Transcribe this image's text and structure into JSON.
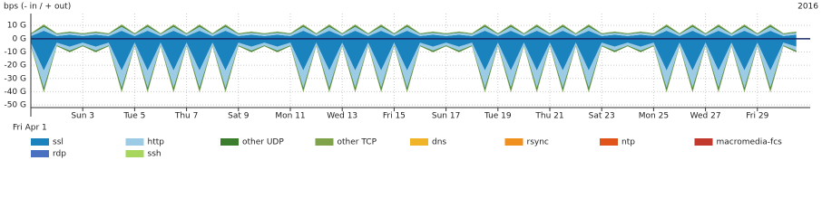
{
  "chart_data": {
    "type": "stacked-area",
    "title": "bps (- in / + out)",
    "year": "2016",
    "categories": [
      "Fri Apr 1",
      null,
      null,
      null,
      "Sun 3",
      null,
      null,
      null,
      "Tue 5",
      null,
      null,
      null,
      "Thu 7",
      null,
      null,
      null,
      "Sat 9",
      null,
      null,
      null,
      "Mon 11",
      null,
      null,
      null,
      "Wed 13",
      null,
      null,
      null,
      "Fri 15",
      null,
      null,
      null,
      "Sun 17",
      null,
      null,
      null,
      "Tue 19",
      null,
      null,
      null,
      "Thu 21",
      null,
      null,
      null,
      "Sat 23",
      null,
      null,
      null,
      "Mon 25",
      null,
      null,
      null,
      "Wed 27",
      null,
      null,
      null,
      "Fri 29",
      null,
      null,
      null
    ],
    "ylim": [
      -52,
      19
    ],
    "yticks": [
      {
        "value": 10,
        "label": "10 G"
      },
      {
        "value": 0,
        "label": "0 G"
      },
      {
        "value": -10,
        "label": "-10 G"
      },
      {
        "value": -20,
        "label": "-20 G"
      },
      {
        "value": -30,
        "label": "-30 G"
      },
      {
        "value": -40,
        "label": "-40 G"
      },
      {
        "value": -50,
        "label": "-50 G"
      }
    ],
    "grid": true,
    "series": [
      {
        "name": "ssl",
        "color": "#1a82bd",
        "out": [
          2,
          6,
          2,
          3,
          2,
          3,
          2,
          6,
          2,
          6,
          2,
          6,
          2,
          6,
          2,
          6,
          2,
          3,
          2,
          3,
          2,
          6,
          2,
          6,
          2,
          6,
          2,
          6,
          2,
          6,
          2,
          3,
          2,
          3,
          2,
          6,
          2,
          6,
          2,
          6,
          2,
          6,
          2,
          6,
          2,
          3,
          2,
          3,
          2,
          6,
          2,
          6,
          2,
          6,
          2,
          6,
          2,
          6,
          2,
          3
        ],
        "in": [
          -3,
          -24,
          -3,
          -6,
          -3,
          -6,
          -3,
          -24,
          -3,
          -24,
          -3,
          -24,
          -3,
          -24,
          -3,
          -24,
          -3,
          -6,
          -3,
          -6,
          -3,
          -24,
          -3,
          -24,
          -3,
          -24,
          -3,
          -24,
          -3,
          -24,
          -3,
          -6,
          -3,
          -6,
          -3,
          -24,
          -3,
          -24,
          -3,
          -24,
          -3,
          -24,
          -3,
          -24,
          -3,
          -6,
          -3,
          -6,
          -3,
          -24,
          -3,
          -24,
          -3,
          -24,
          -3,
          -24,
          -3,
          -24,
          -3,
          -6
        ]
      },
      {
        "name": "http",
        "color": "#9ccbe6",
        "out": [
          1.5,
          3,
          1.5,
          1.5,
          1.5,
          1.5,
          1.5,
          3,
          1.5,
          3,
          1.5,
          3,
          1.5,
          3,
          1.5,
          3,
          1.5,
          1.5,
          1.5,
          1.5,
          1.5,
          3,
          1.5,
          3,
          1.5,
          3,
          1.5,
          3,
          1.5,
          3,
          1.5,
          1.5,
          1.5,
          1.5,
          1.5,
          3,
          1.5,
          3,
          1.5,
          3,
          1.5,
          3,
          1.5,
          3,
          1.5,
          1.5,
          1.5,
          1.5,
          1.5,
          3,
          1.5,
          3,
          1.5,
          3,
          1.5,
          3,
          1.5,
          3,
          1.5,
          1.5
        ],
        "in": [
          -2,
          -13,
          -2,
          -3,
          -2,
          -3,
          -2,
          -13,
          -2,
          -13,
          -2,
          -13,
          -2,
          -13,
          -2,
          -13,
          -2,
          -3,
          -2,
          -3,
          -2,
          -13,
          -2,
          -13,
          -2,
          -13,
          -2,
          -13,
          -2,
          -13,
          -2,
          -3,
          -2,
          -3,
          -2,
          -13,
          -2,
          -13,
          -2,
          -13,
          -2,
          -13,
          -2,
          -13,
          -2,
          -3,
          -2,
          -3,
          -2,
          -13,
          -2,
          -13,
          -2,
          -13,
          -2,
          -13,
          -2,
          -13,
          -2,
          -3
        ]
      },
      {
        "name": "other UDP",
        "color": "#3b7d2c",
        "out": [
          0.4,
          1,
          0.4,
          0.5,
          0.4,
          0.5,
          0.4,
          1,
          0.4,
          1,
          0.4,
          1,
          0.4,
          1,
          0.4,
          1,
          0.4,
          0.5,
          0.4,
          0.5,
          0.4,
          1,
          0.4,
          1,
          0.4,
          1,
          0.4,
          1,
          0.4,
          1,
          0.4,
          0.5,
          0.4,
          0.5,
          0.4,
          1,
          0.4,
          1,
          0.4,
          1,
          0.4,
          1,
          0.4,
          1,
          0.4,
          0.5,
          0.4,
          0.5,
          0.4,
          1,
          0.4,
          1,
          0.4,
          1,
          0.4,
          1,
          0.4,
          1,
          0.4,
          0.5
        ],
        "in": [
          -0.5,
          -2,
          -0.5,
          -0.8,
          -0.5,
          -0.8,
          -0.5,
          -2,
          -0.5,
          -2,
          -0.5,
          -2,
          -0.5,
          -2,
          -0.5,
          -2,
          -0.5,
          -0.8,
          -0.5,
          -0.8,
          -0.5,
          -2,
          -0.5,
          -2,
          -0.5,
          -2,
          -0.5,
          -2,
          -0.5,
          -2,
          -0.5,
          -0.8,
          -0.5,
          -0.8,
          -0.5,
          -2,
          -0.5,
          -2,
          -0.5,
          -2,
          -0.5,
          -2,
          -0.5,
          -2,
          -0.5,
          -0.8,
          -0.5,
          -0.8,
          -0.5,
          -2,
          -0.5,
          -2,
          -0.5,
          -2,
          -0.5,
          -2,
          -0.5,
          -2,
          -0.5,
          -0.8
        ]
      },
      {
        "name": "other TCP",
        "color": "#7fa24b",
        "out": [
          0.3,
          0.8,
          0.3,
          0.4,
          0.3,
          0.4,
          0.3,
          0.8,
          0.3,
          0.8,
          0.3,
          0.8,
          0.3,
          0.8,
          0.3,
          0.8,
          0.3,
          0.4,
          0.3,
          0.4,
          0.3,
          0.8,
          0.3,
          0.8,
          0.3,
          0.8,
          0.3,
          0.8,
          0.3,
          0.8,
          0.3,
          0.4,
          0.3,
          0.4,
          0.3,
          0.8,
          0.3,
          0.8,
          0.3,
          0.8,
          0.3,
          0.8,
          0.3,
          0.8,
          0.3,
          0.4,
          0.3,
          0.4,
          0.3,
          0.8,
          0.3,
          0.8,
          0.3,
          0.8,
          0.3,
          0.8,
          0.3,
          0.8,
          0.3,
          0.4
        ],
        "in": [
          -0.3,
          -1.5,
          -0.3,
          -0.5,
          -0.3,
          -0.5,
          -0.3,
          -1.5,
          -0.3,
          -1.5,
          -0.3,
          -1.5,
          -0.3,
          -1.5,
          -0.3,
          -1.5,
          -0.3,
          -0.5,
          -0.3,
          -0.5,
          -0.3,
          -1.5,
          -0.3,
          -1.5,
          -0.3,
          -1.5,
          -0.3,
          -1.5,
          -0.3,
          -1.5,
          -0.3,
          -0.5,
          -0.3,
          -0.5,
          -0.3,
          -1.5,
          -0.3,
          -1.5,
          -0.3,
          -1.5,
          -0.3,
          -1.5,
          -0.3,
          -1.5,
          -0.3,
          -0.5,
          -0.3,
          -0.5,
          -0.3,
          -1.5,
          -0.3,
          -1.5,
          -0.3,
          -1.5,
          -0.3,
          -1.5,
          -0.3,
          -1.5,
          -0.3,
          -0.5
        ]
      }
    ],
    "legend": [
      {
        "name": "ssl",
        "color": "#1a82bd"
      },
      {
        "name": "http",
        "color": "#9ccbe6"
      },
      {
        "name": "other UDP",
        "color": "#3b7d2c"
      },
      {
        "name": "other TCP",
        "color": "#7fa24b"
      },
      {
        "name": "dns",
        "color": "#f0b428"
      },
      {
        "name": "rsync",
        "color": "#f0901e"
      },
      {
        "name": "ntp",
        "color": "#e0541c"
      },
      {
        "name": "macromedia-fcs",
        "color": "#c23a2e"
      },
      {
        "name": "rdp",
        "color": "#4a70c0"
      },
      {
        "name": "ssh",
        "color": "#a6d65c"
      }
    ]
  }
}
